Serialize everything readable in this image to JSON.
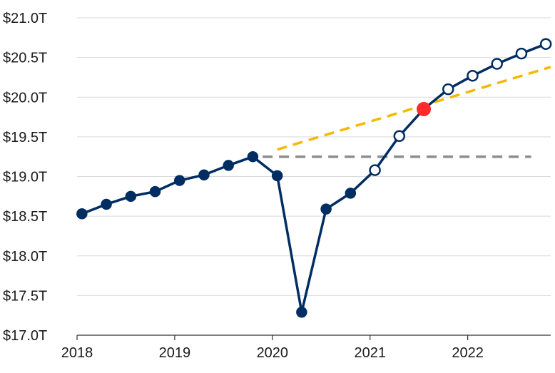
{
  "colors": {
    "gridline": "#d9d9d9",
    "axis": "#333333",
    "series": "#002d62",
    "open_fill": "#ffffff",
    "highlight": "#ff2b2b",
    "trend_yellow": "#f5b800",
    "trend_gray": "#8c8c8c"
  },
  "chart_data": {
    "type": "line",
    "title": "",
    "xlabel": "",
    "ylabel": "",
    "xlim": [
      2018.0,
      2022.85
    ],
    "ylim": [
      17.0,
      21.0
    ],
    "grid": "horizontal",
    "x_ticks": [
      {
        "value": 2018,
        "label": "2018"
      },
      {
        "value": 2019,
        "label": "2019"
      },
      {
        "value": 2020,
        "label": "2020"
      },
      {
        "value": 2021,
        "label": "2021"
      },
      {
        "value": 2022,
        "label": "2022"
      }
    ],
    "y_ticks": [
      {
        "value": 21.0,
        "label": "$21.0T"
      },
      {
        "value": 20.5,
        "label": "$20.5T"
      },
      {
        "value": 20.0,
        "label": "$20.0T"
      },
      {
        "value": 19.5,
        "label": "$19.5T"
      },
      {
        "value": 19.0,
        "label": "$19.0T"
      },
      {
        "value": 18.5,
        "label": "$18.5T"
      },
      {
        "value": 18.0,
        "label": "$18.0T"
      },
      {
        "value": 17.5,
        "label": "$17.5T"
      },
      {
        "value": 17.0,
        "label": "$17.0T"
      }
    ],
    "series": [
      {
        "marker": "filled",
        "points": [
          {
            "x": 2018.05,
            "y": 18.53
          },
          {
            "x": 2018.3,
            "y": 18.65
          },
          {
            "x": 2018.55,
            "y": 18.75
          },
          {
            "x": 2018.8,
            "y": 18.81
          },
          {
            "x": 2019.05,
            "y": 18.95
          },
          {
            "x": 2019.3,
            "y": 19.02
          },
          {
            "x": 2019.55,
            "y": 19.14
          },
          {
            "x": 2019.8,
            "y": 19.25
          },
          {
            "x": 2020.05,
            "y": 19.01
          },
          {
            "x": 2020.3,
            "y": 17.29
          },
          {
            "x": 2020.55,
            "y": 18.59
          },
          {
            "x": 2020.8,
            "y": 18.79
          }
        ]
      },
      {
        "marker": "open",
        "points": [
          {
            "x": 2020.8,
            "y": 18.79
          },
          {
            "x": 2021.05,
            "y": 19.08
          },
          {
            "x": 2021.3,
            "y": 19.51
          },
          {
            "x": 2021.55,
            "y": 19.85
          },
          {
            "x": 2021.8,
            "y": 20.1
          },
          {
            "x": 2022.05,
            "y": 20.27
          },
          {
            "x": 2022.3,
            "y": 20.42
          },
          {
            "x": 2022.55,
            "y": 20.55
          },
          {
            "x": 2022.8,
            "y": 20.67
          }
        ]
      }
    ],
    "highlight_point": {
      "x": 2021.55,
      "y": 19.85
    },
    "trend_lines": [
      {
        "style": "dashed",
        "color_key": "trend_yellow",
        "from": {
          "x": 2020.05,
          "y": 19.34
        },
        "to": {
          "x": 2022.85,
          "y": 20.38
        }
      },
      {
        "style": "dashed",
        "color_key": "trend_gray",
        "from": {
          "x": 2019.9,
          "y": 19.25
        },
        "to": {
          "x": 2022.65,
          "y": 19.25
        }
      }
    ]
  }
}
